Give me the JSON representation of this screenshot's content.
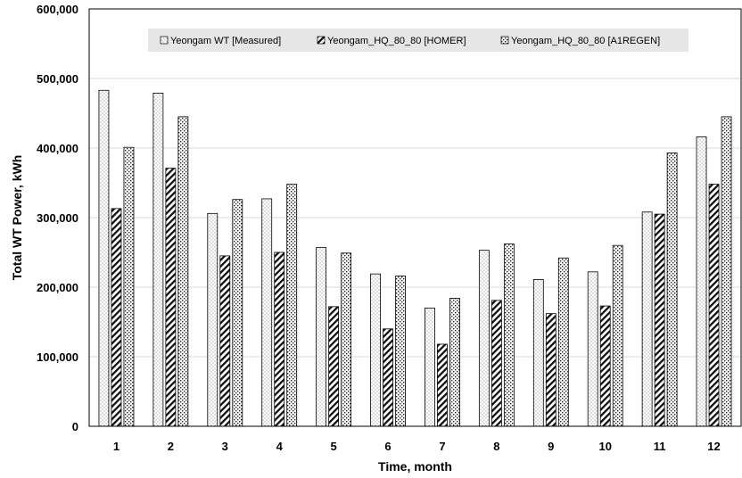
{
  "chart_data": {
    "type": "bar",
    "xlabel": "Time, month",
    "ylabel": "Total  WT Power, kWh",
    "ylim": [
      0,
      600000
    ],
    "yticks": [
      0,
      100000,
      200000,
      300000,
      400000,
      500000,
      600000
    ],
    "ytick_labels": [
      "0",
      "100,000",
      "200,000",
      "300,000",
      "400,000",
      "500,000",
      "600,000"
    ],
    "categories": [
      "1",
      "2",
      "3",
      "4",
      "5",
      "6",
      "7",
      "8",
      "9",
      "10",
      "11",
      "12"
    ],
    "grid": true,
    "legend_position": "top",
    "series": [
      {
        "name": "Yeongam WT [Measured]",
        "pattern": "dots",
        "values": [
          483000,
          479000,
          306000,
          327000,
          257000,
          219000,
          170000,
          253000,
          211000,
          222000,
          308000,
          416000
        ]
      },
      {
        "name": "Yeongam_HQ_80_80 [HOMER]",
        "pattern": "diagonal",
        "values": [
          313000,
          371000,
          245000,
          250000,
          172000,
          140000,
          118000,
          181000,
          162000,
          173000,
          305000,
          348000
        ]
      },
      {
        "name": "Yeongam_HQ_80_80 [A1REGEN]",
        "pattern": "crosshatch",
        "values": [
          401000,
          445000,
          326000,
          348000,
          249000,
          216000,
          184000,
          262000,
          242000,
          260000,
          393000,
          445000
        ]
      }
    ]
  }
}
